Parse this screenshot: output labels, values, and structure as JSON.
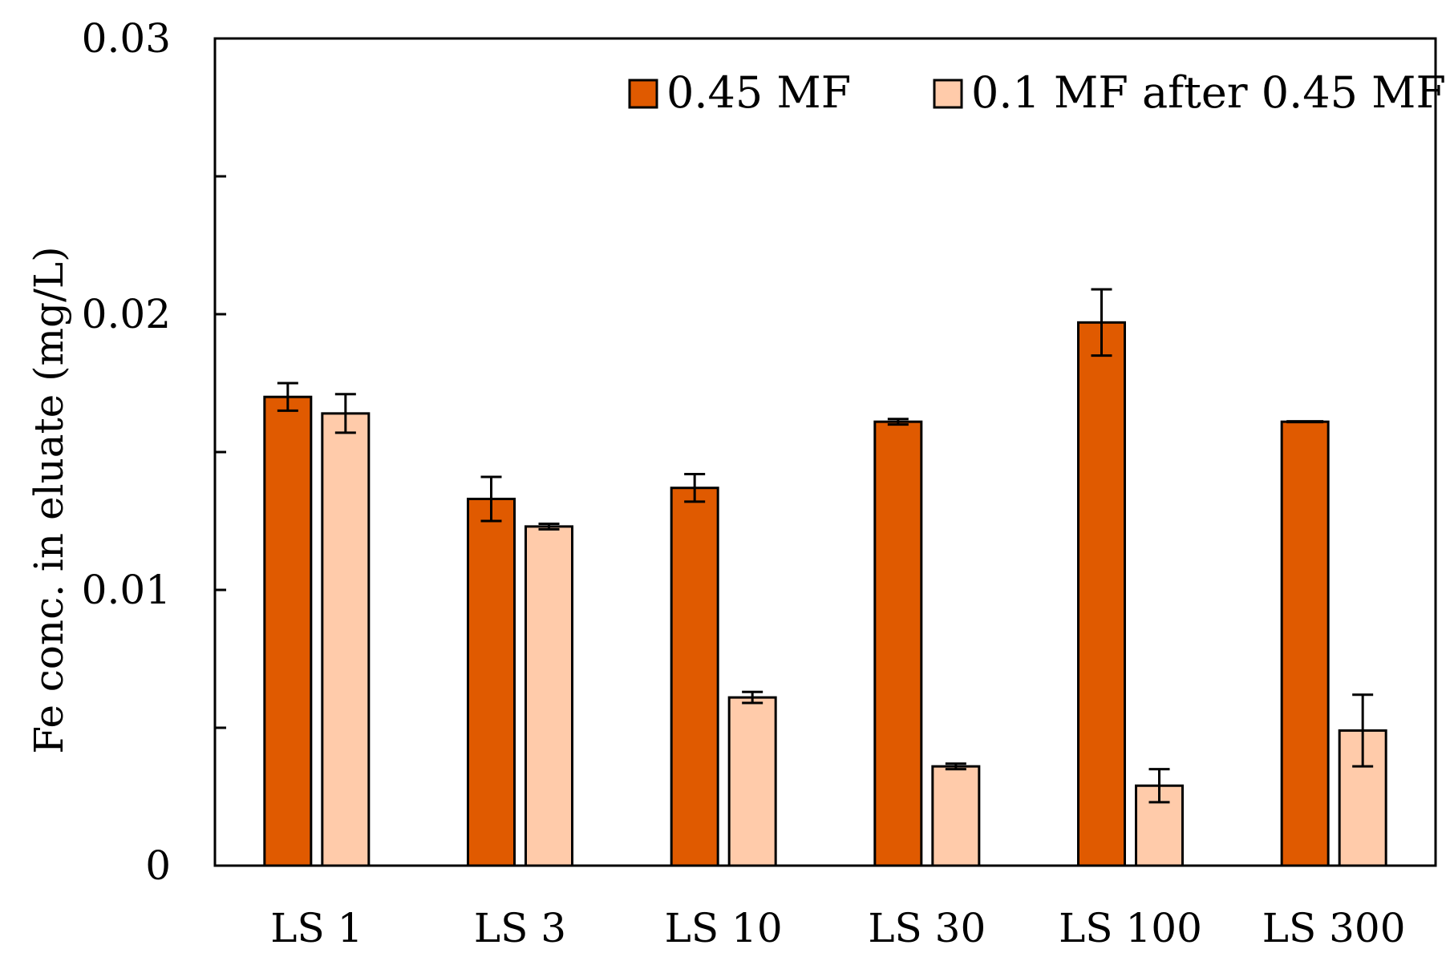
{
  "chart_data": {
    "type": "bar",
    "title": "",
    "xlabel": "",
    "ylabel": "Fe conc. in eluate (mg/L)",
    "ylim": [
      0,
      0.03
    ],
    "yticks": [
      "0",
      "0.01",
      "0.02",
      "0.03"
    ],
    "minor_ytick_values": [
      0.005,
      0.015,
      0.025
    ],
    "categories": [
      "LS 1",
      "LS 3",
      "LS 10",
      "LS 30",
      "LS 100",
      "LS 300"
    ],
    "series": [
      {
        "name": "0.45 MF",
        "color": "#E05A00",
        "values": [
          0.017,
          0.0133,
          0.0137,
          0.0161,
          0.0197,
          0.0161
        ],
        "errors": [
          0.0005,
          0.0008,
          0.0005,
          0.0001,
          0.0012,
          0.0
        ]
      },
      {
        "name": "0.1 MF after 0.45 MF",
        "color": "#FFCBAA",
        "values": [
          0.0164,
          0.0123,
          0.0061,
          0.0036,
          0.0029,
          0.0049
        ],
        "errors": [
          0.0007,
          0.0001,
          0.0002,
          0.0001,
          0.0006,
          0.0013
        ]
      }
    ],
    "grid": false,
    "legend_position": "top-right"
  }
}
